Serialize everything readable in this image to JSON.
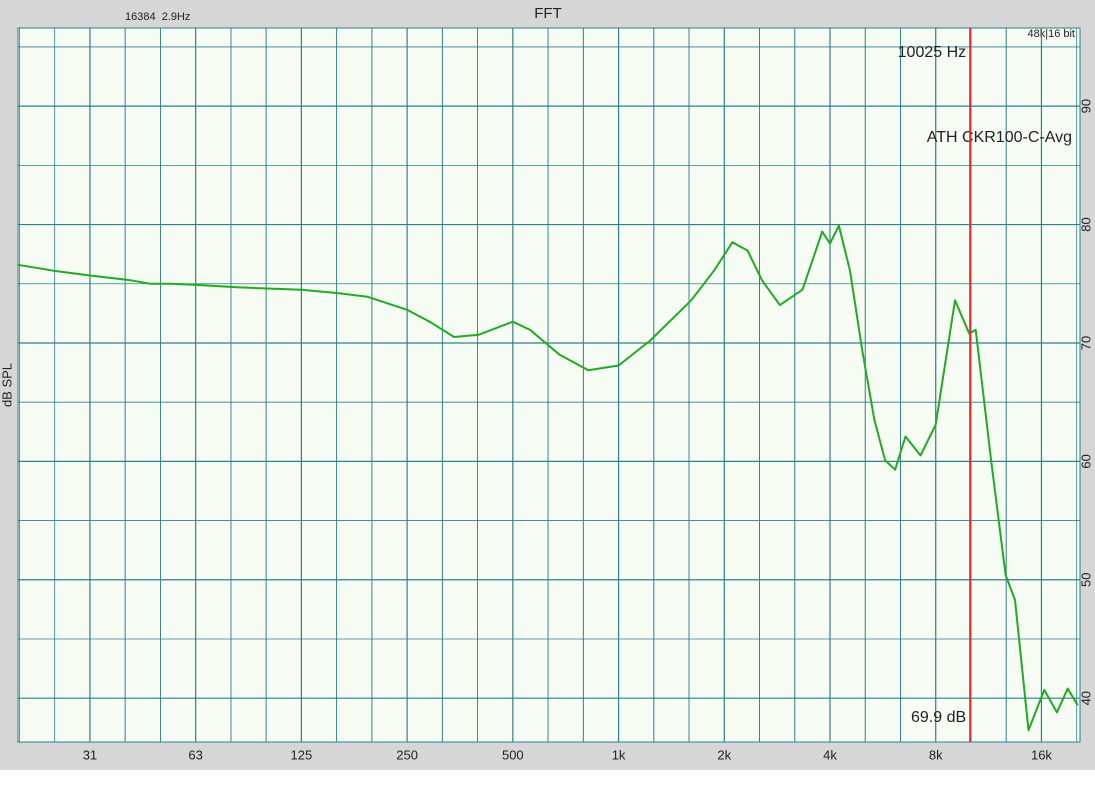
{
  "chart_data": {
    "type": "line",
    "title": "FFT",
    "header_left": "16384  2.9Hz",
    "header_right": "48k|16 bit",
    "ylabel": "dB SPL",
    "x_scale": "log",
    "xlim": [
      19.5,
      20600
    ],
    "ylim": [
      36.3,
      96.6
    ],
    "xticks": [
      {
        "value": 31.25,
        "label": "31"
      },
      {
        "value": 62.5,
        "label": "63"
      },
      125,
      250,
      500,
      {
        "value": 1000,
        "label": "1k"
      },
      {
        "value": 2000,
        "label": "2k"
      },
      {
        "value": 4000,
        "label": "4k"
      },
      {
        "value": 8000,
        "label": "8k"
      },
      {
        "value": 16000,
        "label": "16k"
      }
    ],
    "yticks": [
      40,
      50,
      60,
      70,
      80,
      90
    ],
    "minor_yticks": [
      45,
      55,
      65,
      75,
      85,
      95
    ],
    "minor_xgrid_per_octave": 3,
    "grid": true,
    "legend": "top-right",
    "cursor": {
      "freq": 10025,
      "freq_label": "10025 Hz",
      "level": 69.9,
      "level_label": "69.9 dB",
      "color": "#e03030"
    },
    "x": [
      19.5,
      24.6,
      31.25,
      40.7,
      46.5,
      53,
      62.5,
      82,
      100,
      125,
      160,
      193,
      250,
      290,
      340,
      400,
      500,
      560,
      680,
      820,
      1000,
      1230,
      1610,
      1870,
      2110,
      2330,
      2560,
      2880,
      3340,
      3800,
      4000,
      4240,
      4560,
      4940,
      5350,
      5740,
      6130,
      6560,
      7240,
      8000,
      9080,
      9960,
      10400,
      11500,
      12650,
      13450,
      14700,
      16300,
      17700,
      19000,
      20300
    ],
    "series": [
      {
        "name": "ATH CKR100-C-Avg",
        "color": "#22aa22",
        "values": [
          76.6,
          76.1,
          75.7,
          75.3,
          75.0,
          75.0,
          74.9,
          74.7,
          74.6,
          74.5,
          74.2,
          73.9,
          72.8,
          71.8,
          70.5,
          70.7,
          71.8,
          71.1,
          69.0,
          67.7,
          68.1,
          70.2,
          73.6,
          76.1,
          78.5,
          77.8,
          75.3,
          73.2,
          74.5,
          79.4,
          78.4,
          79.9,
          76.1,
          69.4,
          63.5,
          60.1,
          59.3,
          62.1,
          60.5,
          63.1,
          73.6,
          70.8,
          71.1,
          60.1,
          50.4,
          48.3,
          37.3,
          40.7,
          38.8,
          40.8,
          39.4
        ]
      }
    ]
  }
}
